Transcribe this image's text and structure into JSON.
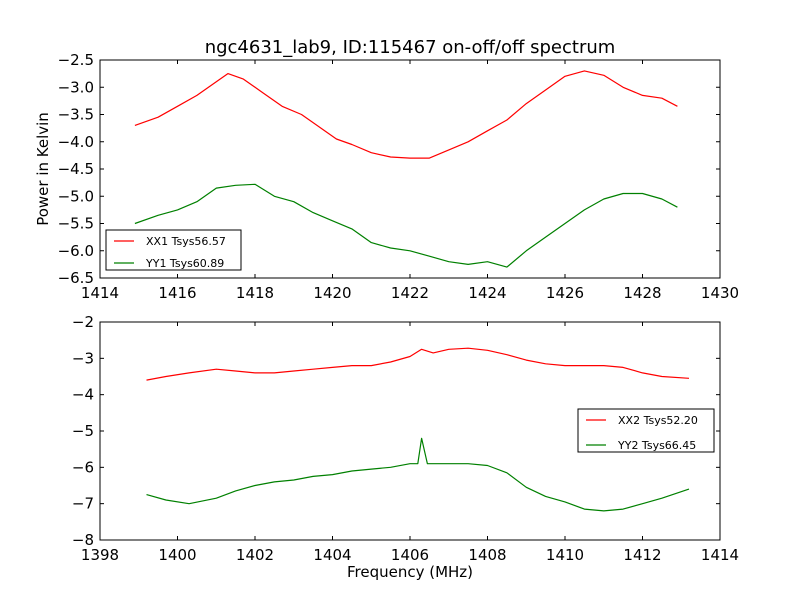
{
  "figure": {
    "title": "ngc4631_lab9, ID:115467 on-off/off spectrum",
    "ylabel": "Power in Kelvin",
    "xlabel": "Frequency (MHz)"
  },
  "chart_data": [
    {
      "type": "line",
      "title": "ngc4631_lab9, ID:115467 on-off/off spectrum",
      "ylabel": "Power in Kelvin",
      "xlabel": "",
      "xlim": [
        1414,
        1430
      ],
      "ylim": [
        -6.5,
        -2.5
      ],
      "xticks": [
        1414,
        1416,
        1418,
        1420,
        1422,
        1424,
        1426,
        1428,
        1430
      ],
      "yticks": [
        -6.5,
        -6.0,
        -5.5,
        -5.0,
        -4.5,
        -4.0,
        -3.5,
        -3.0,
        -2.5
      ],
      "grid": false,
      "legend": "lower-left",
      "series": [
        {
          "name": "XX1 Tsys56.57",
          "color": "#ff0000",
          "x": [
            1414.9,
            1415.5,
            1416.0,
            1416.5,
            1417.0,
            1417.3,
            1417.7,
            1418.2,
            1418.7,
            1419.2,
            1419.7,
            1420.1,
            1420.5,
            1421.0,
            1421.5,
            1422.0,
            1422.5,
            1423.0,
            1423.5,
            1424.0,
            1424.5,
            1425.0,
            1425.5,
            1426.0,
            1426.5,
            1427.0,
            1427.5,
            1428.0,
            1428.5,
            1428.9
          ],
          "y": [
            -3.7,
            -3.55,
            -3.35,
            -3.15,
            -2.9,
            -2.75,
            -2.85,
            -3.1,
            -3.35,
            -3.5,
            -3.75,
            -3.95,
            -4.05,
            -4.2,
            -4.28,
            -4.3,
            -4.3,
            -4.15,
            -4.0,
            -3.8,
            -3.6,
            -3.3,
            -3.05,
            -2.8,
            -2.7,
            -2.78,
            -3.0,
            -3.15,
            -3.2,
            -3.35
          ]
        },
        {
          "name": "YY1 Tsys60.89",
          "color": "#008000",
          "x": [
            1414.9,
            1415.5,
            1416.0,
            1416.5,
            1417.0,
            1417.5,
            1418.0,
            1418.5,
            1419.0,
            1419.5,
            1420.0,
            1420.5,
            1421.0,
            1421.5,
            1422.0,
            1422.5,
            1423.0,
            1423.5,
            1424.0,
            1424.5,
            1425.0,
            1425.5,
            1426.0,
            1426.5,
            1427.0,
            1427.5,
            1428.0,
            1428.5,
            1428.9
          ],
          "y": [
            -5.5,
            -5.35,
            -5.25,
            -5.1,
            -4.85,
            -4.8,
            -4.78,
            -5.0,
            -5.1,
            -5.3,
            -5.45,
            -5.6,
            -5.85,
            -5.95,
            -6.0,
            -6.1,
            -6.2,
            -6.25,
            -6.2,
            -6.3,
            -6.0,
            -5.75,
            -5.5,
            -5.25,
            -5.05,
            -4.95,
            -4.95,
            -5.05,
            -5.2
          ]
        }
      ]
    },
    {
      "type": "line",
      "title": "",
      "ylabel": "",
      "xlabel": "Frequency (MHz)",
      "xlim": [
        1398,
        1414
      ],
      "ylim": [
        -8,
        -2
      ],
      "xticks": [
        1398,
        1400,
        1402,
        1404,
        1406,
        1408,
        1410,
        1412,
        1414
      ],
      "yticks": [
        -8,
        -7,
        -6,
        -5,
        -4,
        -3,
        -2
      ],
      "grid": false,
      "legend": "center-right",
      "series": [
        {
          "name": "XX2 Tsys52.20",
          "color": "#ff0000",
          "x": [
            1399.2,
            1399.7,
            1400.3,
            1401.0,
            1401.5,
            1402.0,
            1402.5,
            1403.0,
            1403.5,
            1404.0,
            1404.5,
            1405.0,
            1405.5,
            1406.0,
            1406.3,
            1406.6,
            1407.0,
            1407.5,
            1408.0,
            1408.5,
            1409.0,
            1409.5,
            1410.0,
            1410.5,
            1411.0,
            1411.5,
            1412.0,
            1412.5,
            1413.2
          ],
          "y": [
            -3.6,
            -3.5,
            -3.4,
            -3.3,
            -3.35,
            -3.4,
            -3.4,
            -3.35,
            -3.3,
            -3.25,
            -3.2,
            -3.2,
            -3.1,
            -2.95,
            -2.75,
            -2.85,
            -2.75,
            -2.72,
            -2.78,
            -2.9,
            -3.05,
            -3.15,
            -3.2,
            -3.2,
            -3.2,
            -3.25,
            -3.4,
            -3.5,
            -3.55
          ]
        },
        {
          "name": "YY2 Tsys66.45",
          "color": "#008000",
          "x": [
            1399.2,
            1399.7,
            1400.3,
            1401.0,
            1401.5,
            1402.0,
            1402.5,
            1403.0,
            1403.5,
            1404.0,
            1404.5,
            1405.0,
            1405.5,
            1406.0,
            1406.2,
            1406.3,
            1406.45,
            1407.0,
            1407.5,
            1408.0,
            1408.5,
            1409.0,
            1409.5,
            1410.0,
            1410.5,
            1411.0,
            1411.5,
            1412.0,
            1412.5,
            1413.2
          ],
          "y": [
            -6.75,
            -6.9,
            -7.0,
            -6.85,
            -6.65,
            -6.5,
            -6.4,
            -6.35,
            -6.25,
            -6.2,
            -6.1,
            -6.05,
            -6.0,
            -5.9,
            -5.9,
            -5.2,
            -5.9,
            -5.9,
            -5.9,
            -5.95,
            -6.15,
            -6.55,
            -6.8,
            -6.95,
            -7.15,
            -7.2,
            -7.15,
            -7.0,
            -6.85,
            -6.6
          ]
        }
      ]
    }
  ]
}
